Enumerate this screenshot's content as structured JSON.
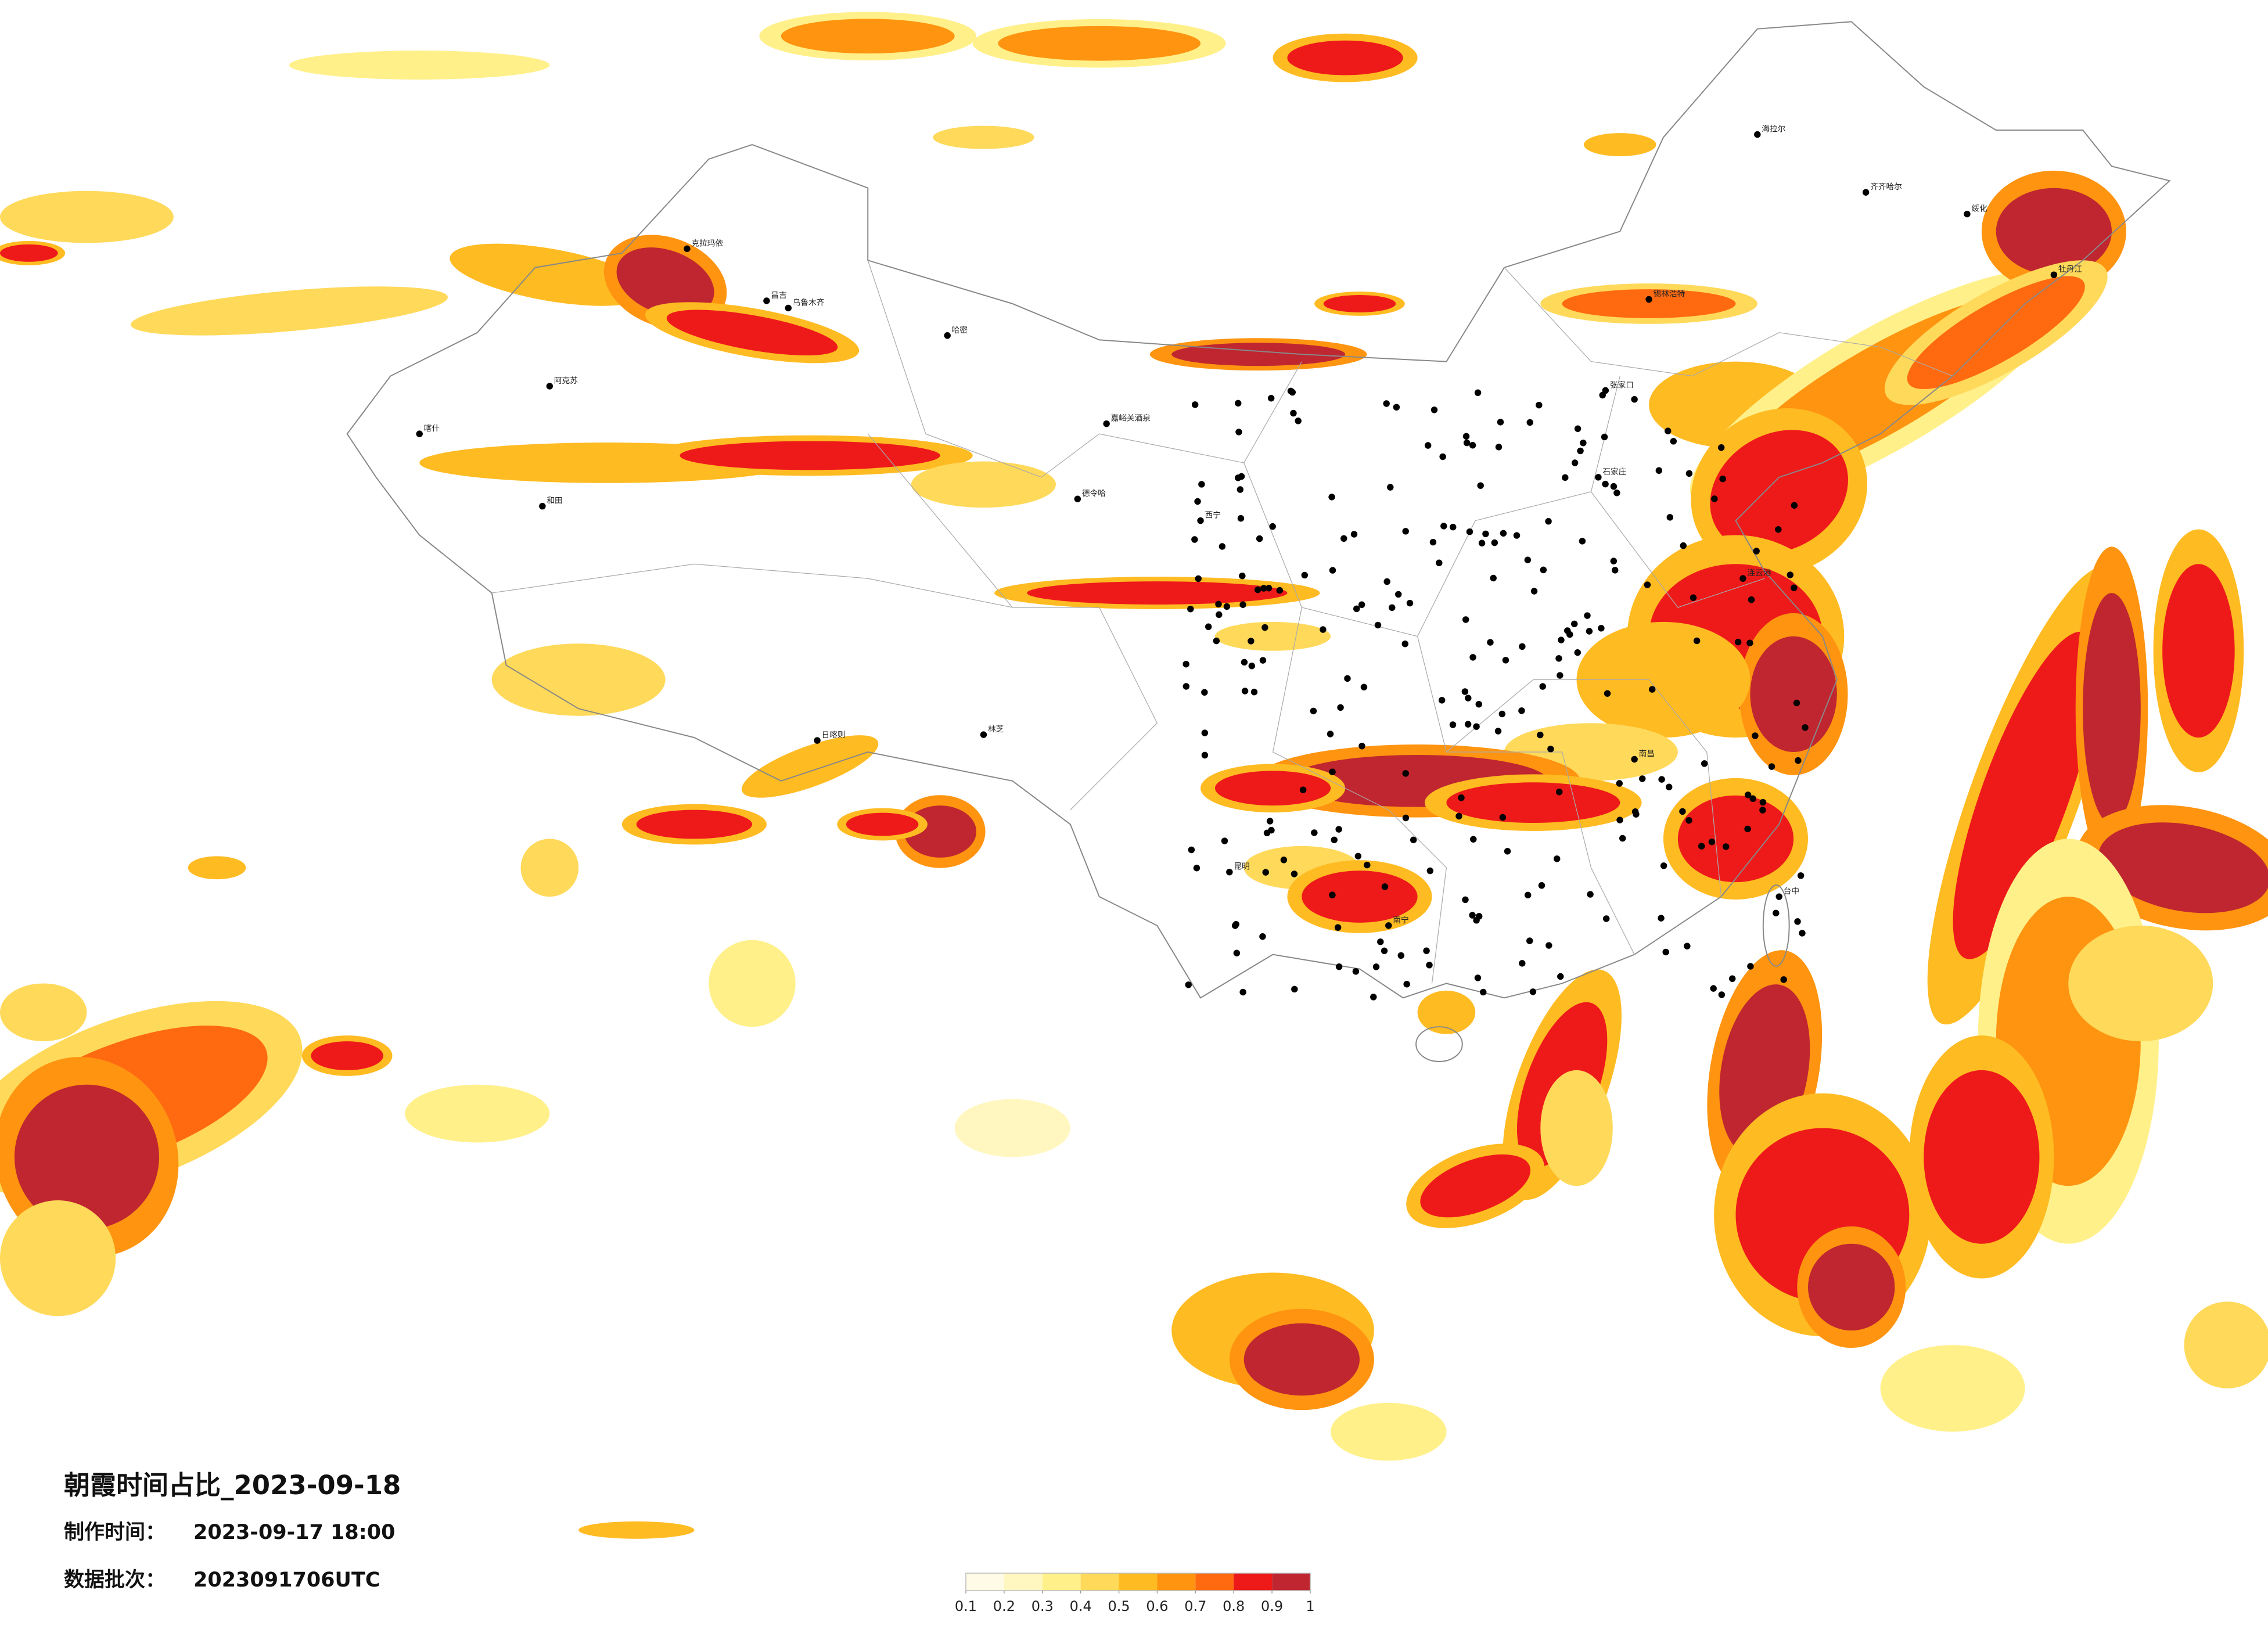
{
  "header": {
    "title": "朝霞时间占比_2023-09-18",
    "made_label": "制作时间：",
    "made_value": "2023-09-17 18:00",
    "batch_label": "数据批次：",
    "batch_value": "2023091706UTC"
  },
  "colorbar": {
    "ticks": [
      0.1,
      0.2,
      0.3,
      0.4,
      0.5,
      0.6,
      0.7,
      0.8,
      0.9,
      1
    ],
    "colors": [
      "#fffbe6",
      "#fff7bf",
      "#fff08a",
      "#ffd95a",
      "#ffbb22",
      "#ff9410",
      "#ff6a10",
      "#ee1a1a",
      "#bf2630"
    ]
  },
  "cities": [
    "克拉玛依",
    "昌吉",
    "乌鲁木齐",
    "哈密",
    "阿克苏",
    "喀什",
    "和田",
    "嘉峪关酒泉",
    "德令哈",
    "日喀则",
    "林芝",
    "西宁",
    "锡林浩特",
    "海拉尔",
    "齐齐哈尔",
    "绥化",
    "牡丹江",
    "张家口",
    "石家庄",
    "连云港",
    "南昌",
    "昆明",
    "南宁",
    "台中"
  ]
}
